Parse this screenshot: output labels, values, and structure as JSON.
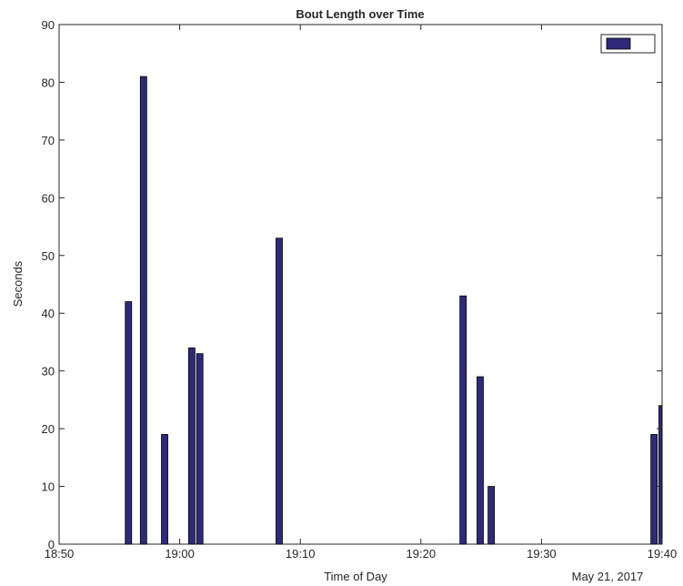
{
  "chart_data": {
    "type": "bar",
    "title": "Bout Length over Time",
    "xlabel": "Time of Day",
    "ylabel": "Seconds",
    "date_label": "May 21, 2017",
    "xlim": [
      "18:50",
      "19:40"
    ],
    "ylim": [
      0,
      90
    ],
    "xticks": [
      "18:50",
      "19:00",
      "19:10",
      "19:20",
      "19:30",
      "19:40"
    ],
    "yticks": [
      0,
      10,
      20,
      30,
      40,
      50,
      60,
      70,
      80,
      90
    ],
    "grid": false,
    "legend": {
      "placement": "top-right",
      "entries": [
        ""
      ]
    },
    "bar_color": "#2e2a7a",
    "series": [
      {
        "x": [
          "18:55:45",
          "18:57:00",
          "18:58:45",
          "19:01:00",
          "19:01:40",
          "19:08:15",
          "19:23:30",
          "19:24:55",
          "19:25:50",
          "19:39:20",
          "19:40:00"
        ],
        "values": [
          42,
          81,
          19,
          34,
          33,
          53,
          43,
          29,
          10,
          19,
          24
        ]
      }
    ]
  }
}
